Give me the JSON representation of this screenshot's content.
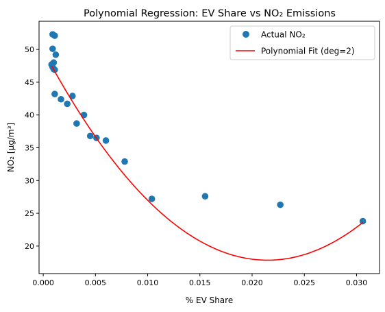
{
  "chart_data": {
    "type": "scatter",
    "title": "Polynomial Regression: EV Share vs NO₂ Emissions",
    "xlabel": "% EV Share",
    "ylabel": "NO₂ [µg/m³]",
    "xlim": [
      -0.0004,
      0.0322
    ],
    "ylim": [
      15.8,
      54.3
    ],
    "x_ticks": [
      0.0,
      0.005,
      0.01,
      0.015,
      0.02,
      0.025,
      0.03
    ],
    "x_tick_labels": [
      "0.000",
      "0.005",
      "0.010",
      "0.015",
      "0.020",
      "0.025",
      "0.030"
    ],
    "y_ticks": [
      20,
      25,
      30,
      35,
      40,
      45,
      50
    ],
    "y_tick_labels": [
      "20",
      "25",
      "30",
      "35",
      "40",
      "45",
      "50"
    ],
    "grid": false,
    "legend_position": "top-right",
    "series": [
      {
        "name": "Actual NO₂",
        "kind": "scatter",
        "color": "#1f77b4",
        "points": [
          [
            0.0009,
            52.3
          ],
          [
            0.0011,
            52.1
          ],
          [
            0.0009,
            50.1
          ],
          [
            0.0012,
            49.2
          ],
          [
            0.001,
            48.0
          ],
          [
            0.0008,
            47.7
          ],
          [
            0.0009,
            47.3
          ],
          [
            0.001,
            47.0
          ],
          [
            0.0011,
            46.9
          ],
          [
            0.0011,
            43.2
          ],
          [
            0.0017,
            42.4
          ],
          [
            0.0023,
            41.7
          ],
          [
            0.0028,
            42.9
          ],
          [
            0.0032,
            38.7
          ],
          [
            0.0039,
            40.0
          ],
          [
            0.0045,
            36.8
          ],
          [
            0.0051,
            36.5
          ],
          [
            0.006,
            36.1
          ],
          [
            0.0078,
            32.9
          ],
          [
            0.0104,
            27.2
          ],
          [
            0.0155,
            27.6
          ],
          [
            0.0227,
            26.3
          ],
          [
            0.0306,
            23.8
          ]
        ]
      },
      {
        "name": "Polynomial Fit (deg=2)",
        "kind": "line",
        "color": "#ff0000",
        "x_range": [
          0.0008,
          0.0306
        ],
        "coefficients": [
          49.84,
          -2978,
          69300
        ]
      }
    ]
  }
}
